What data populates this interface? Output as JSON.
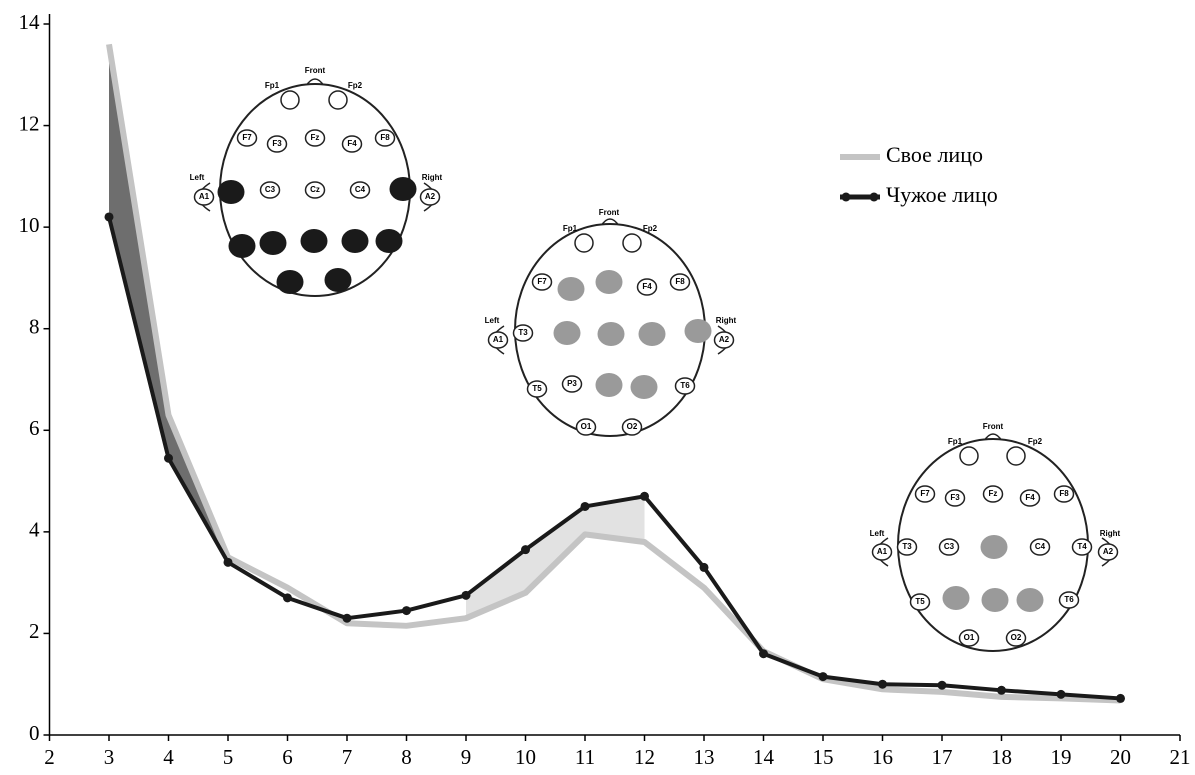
{
  "chart_data": {
    "type": "line",
    "x": [
      3,
      4,
      5,
      6,
      7,
      8,
      9,
      10,
      11,
      12,
      13,
      14,
      15,
      16,
      17,
      18,
      19,
      20
    ],
    "series": [
      {
        "name": "Свое лицо",
        "color": "#c4c4c4",
        "values": [
          13.6,
          6.3,
          3.5,
          2.9,
          2.2,
          2.15,
          2.3,
          2.8,
          3.95,
          3.8,
          2.9,
          1.65,
          1.1,
          0.9,
          0.85,
          0.75,
          0.72,
          0.68
        ]
      },
      {
        "name": "Чужое лицо",
        "color": "#1a1a1a",
        "values": [
          10.2,
          5.45,
          3.4,
          2.7,
          2.3,
          2.45,
          2.75,
          3.65,
          4.5,
          4.7,
          3.3,
          1.6,
          1.15,
          1.0,
          0.98,
          0.88,
          0.8,
          0.72
        ]
      }
    ],
    "highlights": [
      {
        "x": [
          3,
          5
        ],
        "color": "#6e6e6e"
      },
      {
        "x": [
          9,
          12
        ],
        "color": "#e2e2e2"
      }
    ],
    "xlim": [
      2,
      21
    ],
    "xticks": [
      2,
      3,
      4,
      5,
      6,
      7,
      8,
      9,
      10,
      11,
      12,
      13,
      14,
      15,
      16,
      17,
      18,
      19,
      20,
      21
    ],
    "ylim": [
      0,
      14
    ],
    "yticks": [
      0,
      2,
      4,
      6,
      8,
      10,
      12,
      14
    ],
    "grid": false,
    "legend": "upper right"
  },
  "head_maps": [
    {
      "fill": "#1a1a1a",
      "labels": [
        "Front",
        "Fp1",
        "Fp2",
        "F7",
        "F3",
        "Fz",
        "F4",
        "F8",
        "Left",
        "A1",
        "C3",
        "Cz",
        "C4",
        "Right",
        "A2"
      ]
    },
    {
      "fill": "#9a9a9a",
      "labels": [
        "Front",
        "Fp1",
        "Fp2",
        "F7",
        "F4",
        "F8",
        "Left",
        "A1",
        "T3",
        "Right",
        "A2",
        "T5",
        "P3",
        "T6",
        "O1",
        "O2"
      ]
    },
    {
      "fill": "#9a9a9a",
      "labels": [
        "Front",
        "Fp1",
        "Fp2",
        "F7",
        "F3",
        "Fz",
        "F4",
        "F8",
        "Left",
        "A1",
        "T3",
        "C3",
        "C4",
        "T4",
        "Right",
        "A2",
        "T5",
        "T6",
        "O1",
        "O2"
      ]
    }
  ]
}
